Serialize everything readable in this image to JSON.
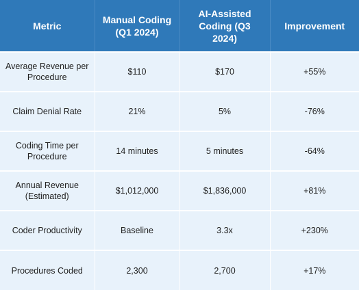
{
  "table": {
    "headers": [
      "Metric",
      "Manual Coding (Q1 2024)",
      "AI-Assisted Coding (Q3 2024)",
      "Improvement"
    ],
    "rows": [
      [
        "Average Revenue per Procedure",
        "$110",
        "$170",
        "+55%"
      ],
      [
        "Claim Denial Rate",
        "21%",
        "5%",
        "-76%"
      ],
      [
        "Coding Time per Procedure",
        "14 minutes",
        "5 minutes",
        "-64%"
      ],
      [
        "Annual Revenue (Estimated)",
        "$1,012,000",
        "$1,836,000",
        "+81%"
      ],
      [
        "Coder Productivity",
        "Baseline",
        "3.3x",
        "+230%"
      ],
      [
        "Procedures Coded",
        "2,300",
        "2,700",
        "+17%"
      ]
    ]
  },
  "colors": {
    "header_bg": "#2f79b9",
    "header_text": "#ffffff",
    "cell_bg": "#e8f2fb",
    "cell_text": "#222222"
  }
}
